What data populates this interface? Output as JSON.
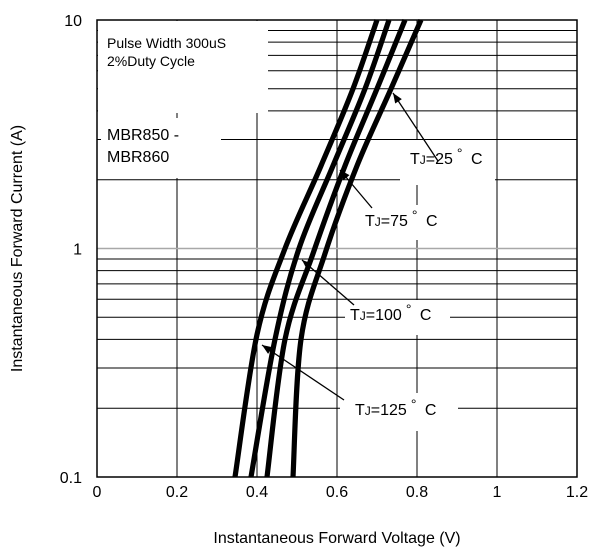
{
  "chart_data": {
    "type": "line",
    "xlabel": "Instantaneous Forward Voltage (V)",
    "ylabel": "Instantaneous Forward Current (A)",
    "xlim": [
      0,
      1.2
    ],
    "ylim": [
      0.1,
      10
    ],
    "y_scale": "log",
    "grid": true,
    "x_ticks": [
      "0",
      "0.2",
      "0.4",
      "0.6",
      "0.8",
      "1",
      "1.2"
    ],
    "y_ticks": [
      "0.1",
      "1",
      "10"
    ],
    "notes": [
      "Pulse Width 300uS",
      "2%Duty Cycle"
    ],
    "part_label": [
      "MBR850 -",
      "MBR860"
    ],
    "series": [
      {
        "name": "TJ=125° C",
        "label_parts": [
          "T",
          "J",
          "=125",
          "°",
          " C"
        ],
        "x": [
          0.345,
          0.4,
          0.47,
          0.56,
          0.64,
          0.7
        ],
        "y": [
          0.1,
          0.42,
          1.0,
          2.3,
          5.0,
          10
        ]
      },
      {
        "name": "TJ=100° C",
        "label_parts": [
          "T",
          "J",
          "=100",
          "°",
          " C"
        ],
        "x": [
          0.385,
          0.445,
          0.505,
          0.59,
          0.67,
          0.73
        ],
        "y": [
          0.1,
          0.4,
          1.0,
          2.3,
          5.0,
          10
        ]
      },
      {
        "name": "TJ=75° C",
        "label_parts": [
          "T",
          "J",
          "=75",
          "°",
          " C"
        ],
        "x": [
          0.425,
          0.47,
          0.54,
          0.62,
          0.7,
          0.77
        ],
        "y": [
          0.1,
          0.4,
          0.95,
          2.3,
          5.0,
          10
        ]
      },
      {
        "name": "TJ=25° C",
        "label_parts": [
          "T",
          "J",
          "=25",
          "°",
          " C"
        ],
        "x": [
          0.49,
          0.51,
          0.57,
          0.65,
          0.735,
          0.81
        ],
        "y": [
          0.1,
          0.4,
          0.95,
          2.3,
          5.0,
          10
        ]
      }
    ]
  }
}
